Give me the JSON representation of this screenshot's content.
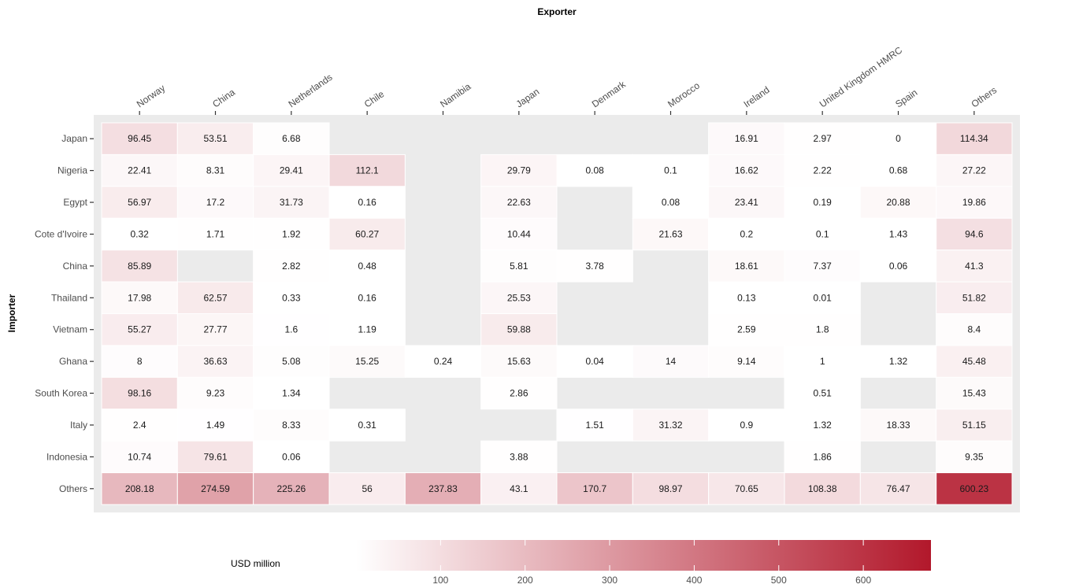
{
  "chart_data": {
    "type": "heatmap",
    "xlabel": "Exporter",
    "ylabel": "Importer",
    "legend_title": "USD million",
    "legend_position": "bottom",
    "legend_ticks": [
      100,
      200,
      300,
      400,
      500,
      600
    ],
    "value_range": [
      0,
      680
    ],
    "color_low": "#ffffff",
    "color_high": "#b2182b",
    "panel_bg": "#ebebeb",
    "x_categories": [
      "Norway",
      "China",
      "Netherlands",
      "Chile",
      "Namibia",
      "Japan",
      "Denmark",
      "Morocco",
      "Ireland",
      "United Kingdom HMRC",
      "Spain",
      "Others"
    ],
    "y_categories": [
      "Japan",
      "Nigeria",
      "Egypt",
      "Cote d'Ivoire",
      "China",
      "Thailand",
      "Vietnam",
      "Ghana",
      "South Korea",
      "Italy",
      "Indonesia",
      "Others"
    ],
    "values": [
      [
        96.45,
        53.51,
        6.68,
        null,
        null,
        null,
        null,
        null,
        16.91,
        2.97,
        0,
        114.34
      ],
      [
        22.41,
        8.31,
        29.41,
        112.1,
        null,
        29.79,
        0.08,
        0.1,
        16.62,
        2.22,
        0.68,
        27.22
      ],
      [
        56.97,
        17.2,
        31.73,
        0.16,
        null,
        22.63,
        null,
        0.08,
        23.41,
        0.19,
        20.88,
        19.86
      ],
      [
        0.32,
        1.71,
        1.92,
        60.27,
        null,
        10.44,
        null,
        21.63,
        0.2,
        0.1,
        1.43,
        94.6
      ],
      [
        85.89,
        null,
        2.82,
        0.48,
        null,
        5.81,
        3.78,
        null,
        18.61,
        7.37,
        0.06,
        41.3
      ],
      [
        17.98,
        62.57,
        0.33,
        0.16,
        null,
        25.53,
        null,
        null,
        0.13,
        0.01,
        null,
        51.82
      ],
      [
        55.27,
        27.77,
        1.6,
        1.19,
        null,
        59.88,
        null,
        null,
        2.59,
        1.8,
        null,
        8.4
      ],
      [
        8,
        36.63,
        5.08,
        15.25,
        0.24,
        15.63,
        0.04,
        14,
        9.14,
        1,
        1.32,
        45.48
      ],
      [
        98.16,
        9.23,
        1.34,
        null,
        null,
        2.86,
        null,
        null,
        null,
        0.51,
        null,
        15.43
      ],
      [
        2.4,
        1.49,
        8.33,
        0.31,
        null,
        null,
        1.51,
        31.32,
        0.9,
        1.32,
        18.33,
        51.15
      ],
      [
        10.74,
        79.61,
        0.06,
        null,
        null,
        3.88,
        null,
        null,
        null,
        1.86,
        null,
        9.35
      ],
      [
        208.18,
        274.59,
        225.26,
        56,
        237.83,
        43.1,
        170.7,
        98.97,
        70.65,
        108.38,
        76.47,
        600.23
      ]
    ]
  }
}
